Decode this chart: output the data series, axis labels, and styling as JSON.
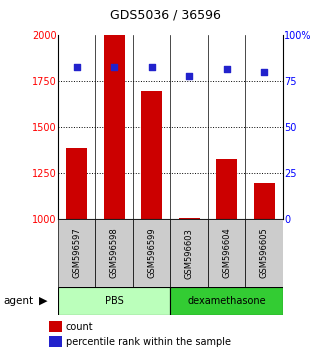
{
  "title": "GDS5036 / 36596",
  "samples": [
    "GSM596597",
    "GSM596598",
    "GSM596599",
    "GSM596603",
    "GSM596604",
    "GSM596605"
  ],
  "counts": [
    1390,
    2000,
    1700,
    1010,
    1330,
    1200
  ],
  "percentiles": [
    83,
    83,
    83,
    78,
    82,
    80
  ],
  "ylim_left": [
    1000,
    2000
  ],
  "ylim_right": [
    0,
    100
  ],
  "yticks_left": [
    1000,
    1250,
    1500,
    1750,
    2000
  ],
  "yticks_right": [
    0,
    25,
    50,
    75,
    100
  ],
  "hgrid_vals": [
    1250,
    1500,
    1750
  ],
  "bar_color": "#cc0000",
  "dot_color": "#2222cc",
  "bar_width": 0.55,
  "groups": [
    {
      "label": "PBS",
      "indices": [
        0,
        1,
        2
      ],
      "color": "#bbffbb"
    },
    {
      "label": "dexamethasone",
      "indices": [
        3,
        4,
        5
      ],
      "color": "#33cc33"
    }
  ],
  "sample_bg_color": "#cccccc",
  "legend_count_label": "count",
  "legend_percentile_label": "percentile rank within the sample"
}
